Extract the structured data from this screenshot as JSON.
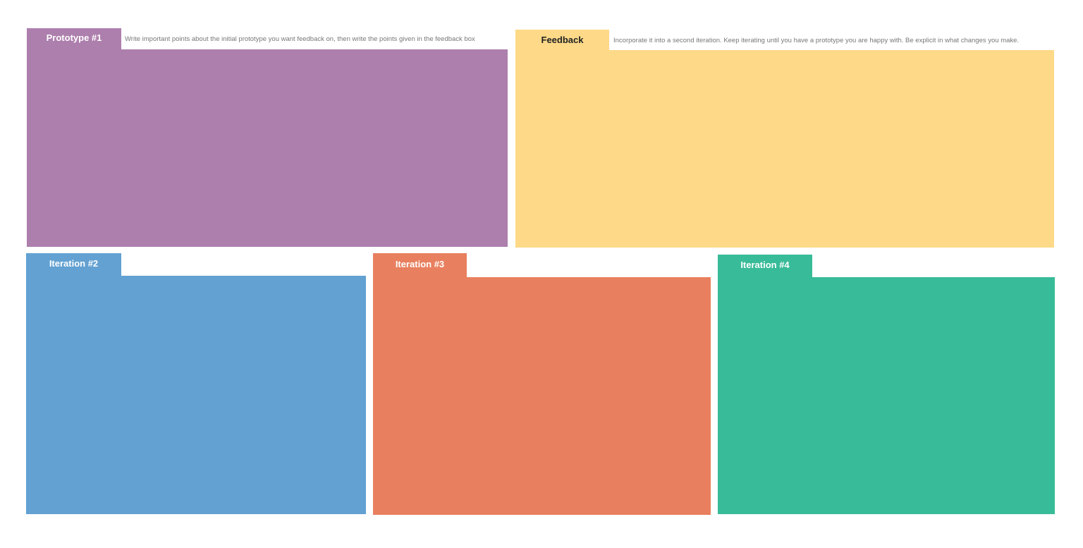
{
  "panels": [
    {
      "title": "Prototype #1",
      "hint": "Write important points about the initial prototype you want feedback on, then write the points given in the feedback box"
    },
    {
      "title": "Feedback",
      "hint": "Incorporate it into a second iteration. Keep iterating until you have a prototype you are happy with. Be explicit in what changes you make."
    },
    {
      "title": "Iteration #2"
    },
    {
      "title": "Iteration #3"
    },
    {
      "title": "Iteration #4"
    }
  ]
}
